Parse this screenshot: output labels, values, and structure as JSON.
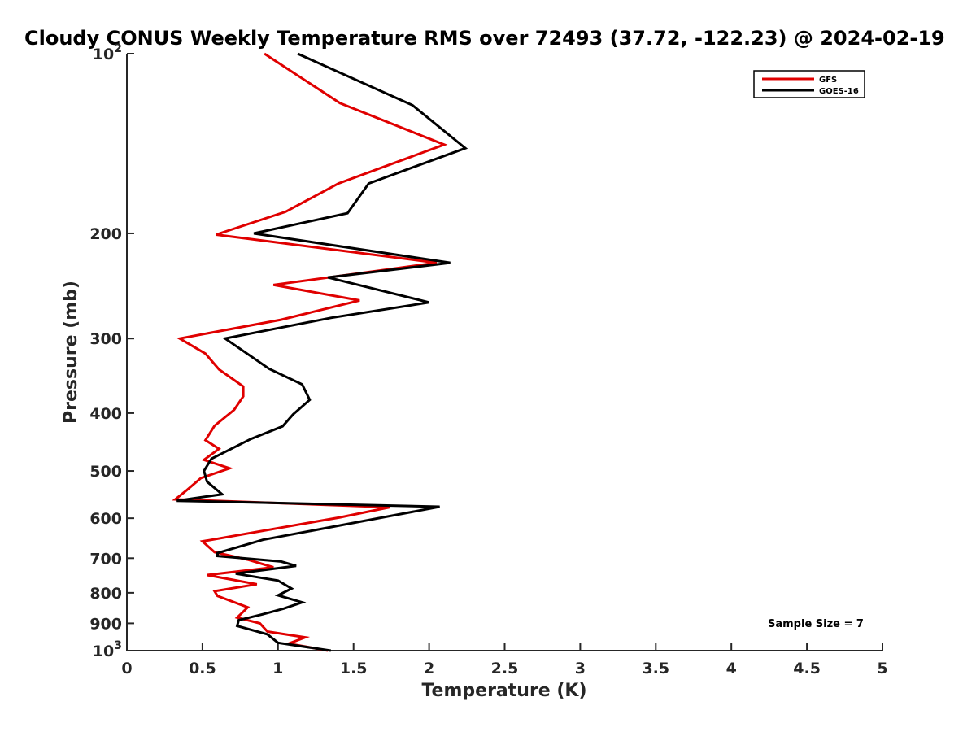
{
  "chart_data": {
    "type": "line",
    "title": "Cloudy CONUS Weekly Temperature RMS over 72493 (37.72, -122.23) @ 2024-02-19",
    "xlabel": "Temperature (K)",
    "ylabel": "Pressure (mb)",
    "xlim": [
      0,
      5
    ],
    "ylim": [
      100,
      1000
    ],
    "yscale": "log",
    "y_reversed": true,
    "grid": false,
    "legend_position": "top-right",
    "x_ticks": [
      {
        "value": 0,
        "label": "0"
      },
      {
        "value": 0.5,
        "label": "0.5"
      },
      {
        "value": 1,
        "label": "1"
      },
      {
        "value": 1.5,
        "label": "1.5"
      },
      {
        "value": 2,
        "label": "2"
      },
      {
        "value": 2.5,
        "label": "2.5"
      },
      {
        "value": 3,
        "label": "3"
      },
      {
        "value": 3.5,
        "label": "3.5"
      },
      {
        "value": 4,
        "label": "4"
      },
      {
        "value": 4.5,
        "label": "4.5"
      },
      {
        "value": 5,
        "label": "5"
      }
    ],
    "y_ticks": [
      {
        "value": 100,
        "base": "10",
        "exp": "2"
      },
      {
        "value": 200,
        "base": "200",
        "exp": ""
      },
      {
        "value": 300,
        "base": "300",
        "exp": ""
      },
      {
        "value": 400,
        "base": "400",
        "exp": ""
      },
      {
        "value": 500,
        "base": "500",
        "exp": ""
      },
      {
        "value": 600,
        "base": "600",
        "exp": ""
      },
      {
        "value": 700,
        "base": "700",
        "exp": ""
      },
      {
        "value": 800,
        "base": "800",
        "exp": ""
      },
      {
        "value": 900,
        "base": "900",
        "exp": ""
      },
      {
        "value": 1000,
        "base": "10",
        "exp": "3"
      }
    ],
    "series": [
      {
        "name": "GFS",
        "color": "#e00000",
        "points": [
          [
            0.91,
            100
          ],
          [
            1.41,
            121
          ],
          [
            2.1,
            142
          ],
          [
            1.4,
            165
          ],
          [
            1.05,
            184
          ],
          [
            0.59,
            201
          ],
          [
            2.05,
            224
          ],
          [
            0.97,
            244
          ],
          [
            1.54,
            259
          ],
          [
            1.02,
            279
          ],
          [
            0.35,
            300
          ],
          [
            0.52,
            318
          ],
          [
            0.61,
            338
          ],
          [
            0.77,
            361
          ],
          [
            0.77,
            375
          ],
          [
            0.71,
            395
          ],
          [
            0.58,
            420
          ],
          [
            0.52,
            444
          ],
          [
            0.61,
            459
          ],
          [
            0.51,
            479
          ],
          [
            0.68,
            495
          ],
          [
            0.49,
            514
          ],
          [
            0.39,
            540
          ],
          [
            0.32,
            558
          ],
          [
            1.74,
            575
          ],
          [
            1.41,
            598
          ],
          [
            0.5,
            656
          ],
          [
            0.58,
            684
          ],
          [
            0.8,
            704
          ],
          [
            0.97,
            725
          ],
          [
            0.53,
            747
          ],
          [
            0.86,
            774
          ],
          [
            0.58,
            795
          ],
          [
            0.6,
            810
          ],
          [
            0.8,
            846
          ],
          [
            0.73,
            880
          ],
          [
            0.88,
            900
          ],
          [
            0.93,
            929
          ],
          [
            1.18,
            950
          ],
          [
            1.07,
            973
          ],
          [
            1.33,
            1000
          ]
        ]
      },
      {
        "name": "GOES-16",
        "color": "#000000",
        "points": [
          [
            1.13,
            100
          ],
          [
            1.89,
            122
          ],
          [
            2.24,
            144
          ],
          [
            1.6,
            165
          ],
          [
            1.46,
            185
          ],
          [
            0.84,
            200
          ],
          [
            2.14,
            224
          ],
          [
            1.33,
            237
          ],
          [
            2.0,
            261
          ],
          [
            1.35,
            277
          ],
          [
            0.65,
            300
          ],
          [
            0.94,
            337
          ],
          [
            1.16,
            358
          ],
          [
            1.21,
            380
          ],
          [
            1.1,
            402
          ],
          [
            1.03,
            421
          ],
          [
            0.82,
            442
          ],
          [
            0.56,
            477
          ],
          [
            0.51,
            500
          ],
          [
            0.53,
            521
          ],
          [
            0.63,
            547
          ],
          [
            0.33,
            561
          ],
          [
            2.07,
            574
          ],
          [
            1.35,
            621
          ],
          [
            0.9,
            652
          ],
          [
            0.6,
            686
          ],
          [
            0.6,
            694
          ],
          [
            1.02,
            709
          ],
          [
            1.12,
            721
          ],
          [
            0.72,
            743
          ],
          [
            1.0,
            763
          ],
          [
            1.09,
            787
          ],
          [
            1.0,
            808
          ],
          [
            1.16,
            830
          ],
          [
            1.04,
            850
          ],
          [
            0.9,
            869
          ],
          [
            0.74,
            889
          ],
          [
            0.73,
            909
          ],
          [
            0.93,
            939
          ],
          [
            1.0,
            970
          ],
          [
            1.35,
            1000
          ]
        ]
      }
    ],
    "annotations": [
      {
        "text": "Sample Size = 7"
      }
    ]
  }
}
